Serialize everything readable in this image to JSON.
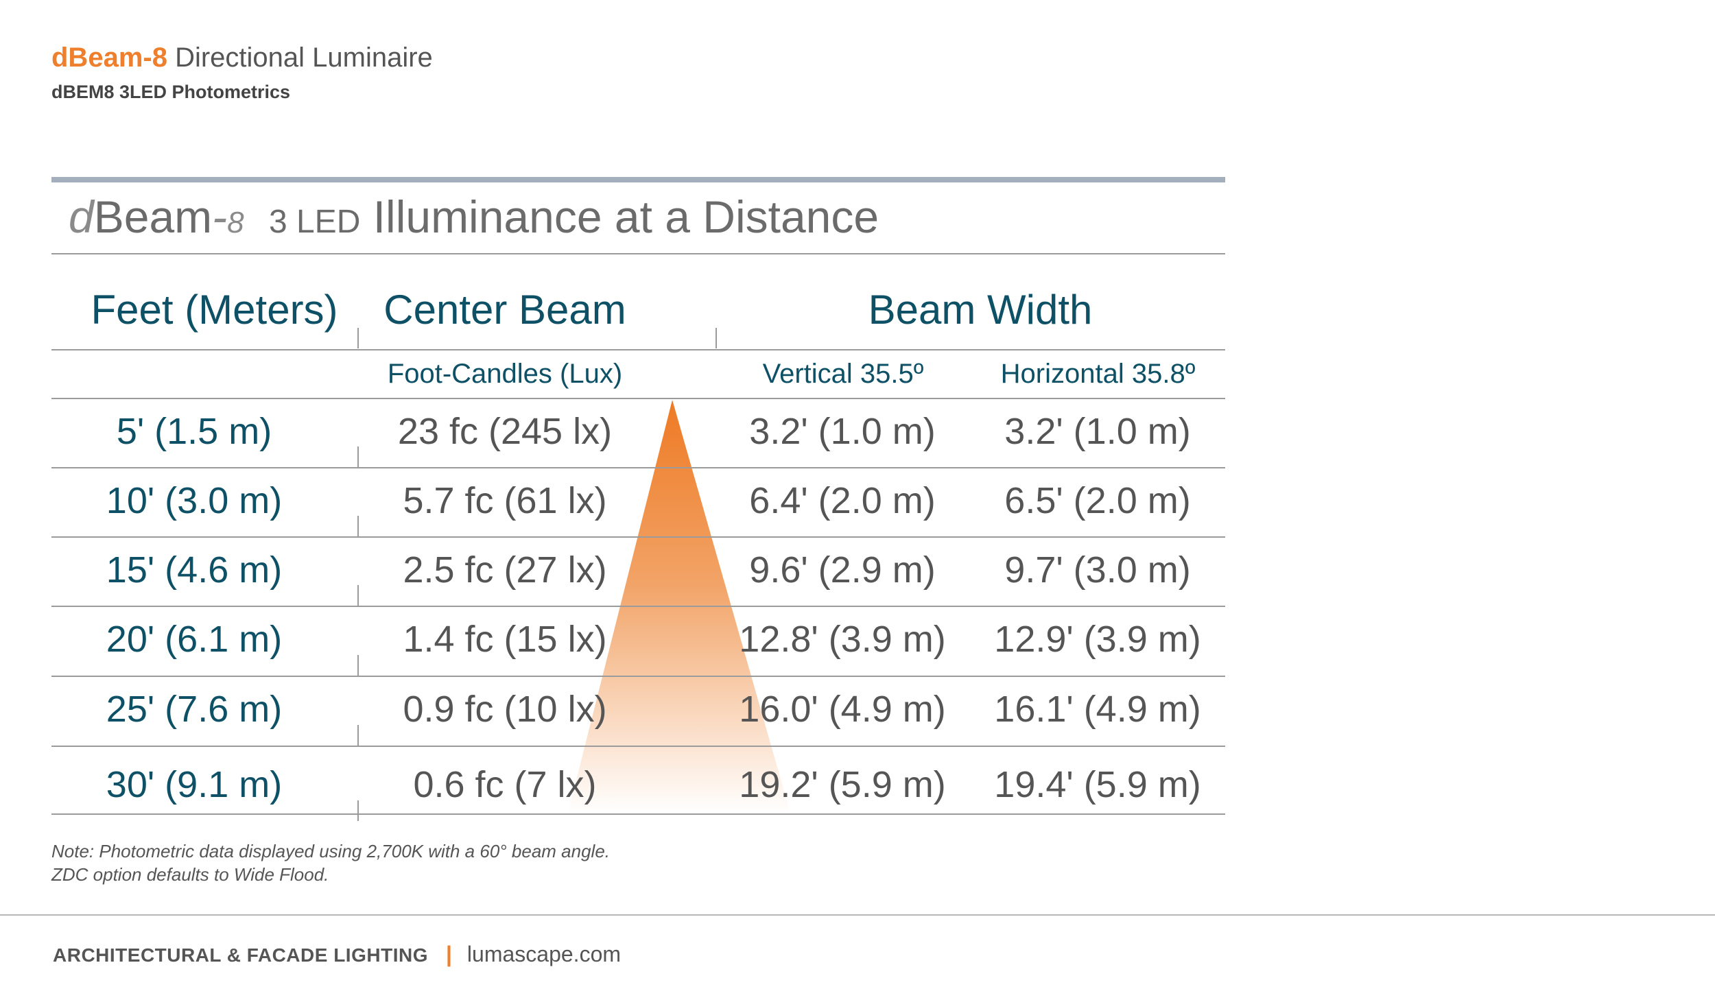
{
  "header": {
    "brand": "dBeam-8",
    "product": "Directional Luminaire",
    "subtitle": "dBEM8 3LED Photometrics"
  },
  "table_title": {
    "d": "d",
    "beam": "Beam",
    "dash": "-",
    "eight": "8",
    "led": "3 LED",
    "rest": "Illuminance at a Distance"
  },
  "columns": {
    "distance": "Feet (Meters)",
    "center_beam": "Center Beam",
    "beam_width": "Beam Width",
    "center_sub": "Foot-Candles (Lux)",
    "vertical_sub": "Vertical 35.5º",
    "horizontal_sub": "Horizontal 35.8º"
  },
  "rows": [
    {
      "distance": "5' (1.5 m)",
      "center": "23 fc (245 lx)",
      "vertical": "3.2' (1.0 m)",
      "horizontal": "3.2' (1.0 m)"
    },
    {
      "distance": "10' (3.0 m)",
      "center": "5.7 fc (61 lx)",
      "vertical": "6.4' (2.0 m)",
      "horizontal": "6.5' (2.0 m)"
    },
    {
      "distance": "15' (4.6 m)",
      "center": "2.5 fc (27 lx)",
      "vertical": "9.6' (2.9 m)",
      "horizontal": "9.7' (3.0 m)"
    },
    {
      "distance": "20' (6.1 m)",
      "center": "1.4 fc (15 lx)",
      "vertical": "12.8' (3.9 m)",
      "horizontal": "12.9' (3.9 m)"
    },
    {
      "distance": "25' (7.6 m)",
      "center": "0.9 fc (10 lx)",
      "vertical": "16.0' (4.9 m)",
      "horizontal": "16.1' (4.9 m)"
    },
    {
      "distance": "30' (9.1 m)",
      "center": "0.6 fc (7 lx)",
      "vertical": "19.2' (5.9 m)",
      "horizontal": "19.4' (5.9 m)"
    }
  ],
  "note": {
    "line1": "Note: Photometric data displayed using 2,700K with a 60° beam angle.",
    "line2": "ZDC option defaults to Wide Flood."
  },
  "footer": {
    "firm": "ARCHITECTURAL & FACADE LIGHTING",
    "separator": "|",
    "website": "lumascape.com"
  },
  "colors": {
    "accent": "#ee7f2d",
    "heading": "#0e5166",
    "rule": "#a3afbd"
  }
}
